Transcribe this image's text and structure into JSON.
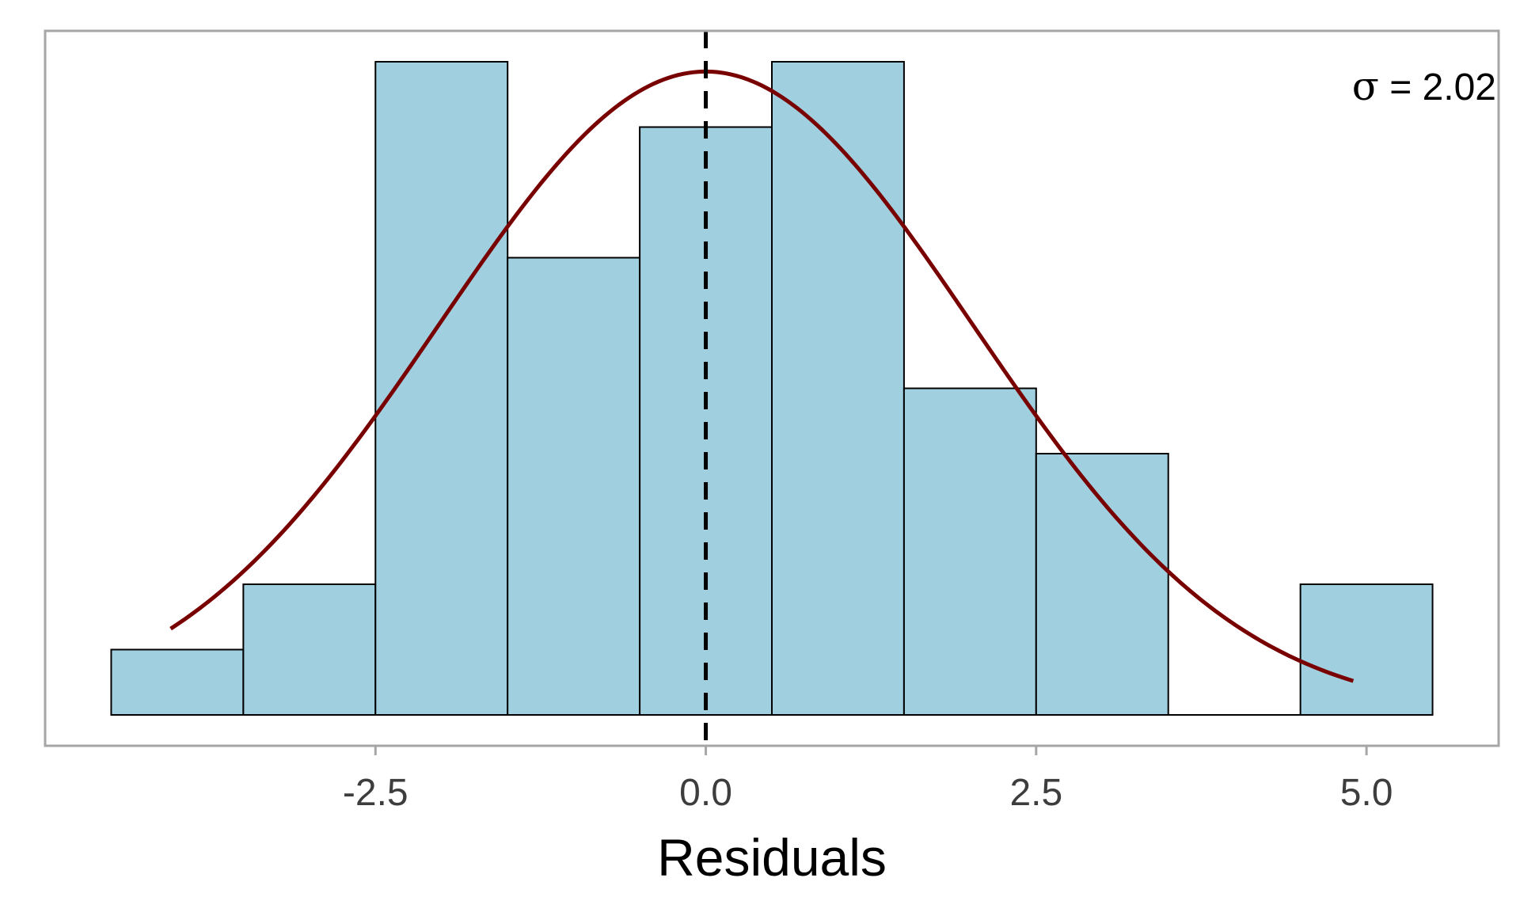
{
  "chart_data": {
    "type": "histogram",
    "title": "",
    "xlabel": "Residuals",
    "ylabel": "",
    "xlim": [
      -5.0,
      6.0
    ],
    "ylim": [
      0,
      10.4
    ],
    "x_ticks": [
      -2.5,
      0.0,
      2.5,
      5.0
    ],
    "x_tick_labels": [
      "-2.5",
      "0.0",
      "2.5",
      "5.0"
    ],
    "show_y_axis": false,
    "grid": false,
    "bins": [
      {
        "x0": -4.5,
        "x1": -3.5,
        "count": 1
      },
      {
        "x0": -3.5,
        "x1": -2.5,
        "count": 2
      },
      {
        "x0": -2.5,
        "x1": -1.5,
        "count": 10
      },
      {
        "x0": -1.5,
        "x1": -0.5,
        "count": 7
      },
      {
        "x0": -0.5,
        "x1": 0.5,
        "count": 9
      },
      {
        "x0": 0.5,
        "x1": 1.5,
        "count": 10
      },
      {
        "x0": 1.5,
        "x1": 2.5,
        "count": 5
      },
      {
        "x0": 2.5,
        "x1": 3.5,
        "count": 4
      },
      {
        "x0": 3.5,
        "x1": 4.5,
        "count": 0
      },
      {
        "x0": 4.5,
        "x1": 5.5,
        "count": 2
      }
    ],
    "normal_curve": {
      "mean": 0.0,
      "sd": 2.02,
      "peak_count": 9.85,
      "x_range": [
        -4.05,
        4.9
      ],
      "color": "#780000"
    },
    "reference_line": {
      "x": 0.0,
      "style": "dashed",
      "color": "#000000"
    },
    "annotation": {
      "symbol": "σ",
      "text": " = 2.02",
      "position": "top-right"
    },
    "colors": {
      "bar_fill": "#a0cfe0",
      "bar_stroke": "#000000",
      "panel_border": "#a6a6a6",
      "tick_color": "#3d3d3d"
    }
  }
}
